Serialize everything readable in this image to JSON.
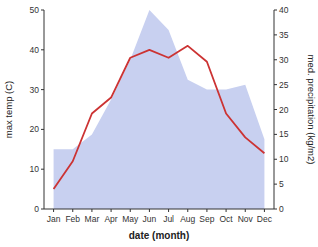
{
  "chart_data": {
    "type": "line",
    "xlabel": "date (month)",
    "ylabel": "max temp (C)",
    "y2label": "med. precipitation (kg/m2)",
    "categories": [
      "Jan",
      "Feb",
      "Mar",
      "Apr",
      "May",
      "Jun",
      "Jul",
      "Aug",
      "Sep",
      "Oct",
      "Nov",
      "Dec"
    ],
    "series": [
      {
        "type": "area",
        "color": "#c8d0f0",
        "axis": "y2",
        "values": [
          12,
          12,
          15,
          22,
          30,
          40,
          36,
          26,
          24,
          24,
          25,
          14
        ]
      },
      {
        "type": "line",
        "color": "#cc3333",
        "values": [
          5,
          12,
          24,
          28,
          38,
          40,
          38,
          41,
          37,
          24,
          18,
          14
        ]
      }
    ],
    "ylim": [
      0,
      50
    ],
    "yticks": [
      0,
      10,
      20,
      30,
      40,
      50
    ],
    "y2lim": [
      0,
      40
    ],
    "y2ticks": [
      0,
      5,
      10,
      15,
      20,
      25,
      30,
      35,
      40
    ],
    "grid": false
  }
}
